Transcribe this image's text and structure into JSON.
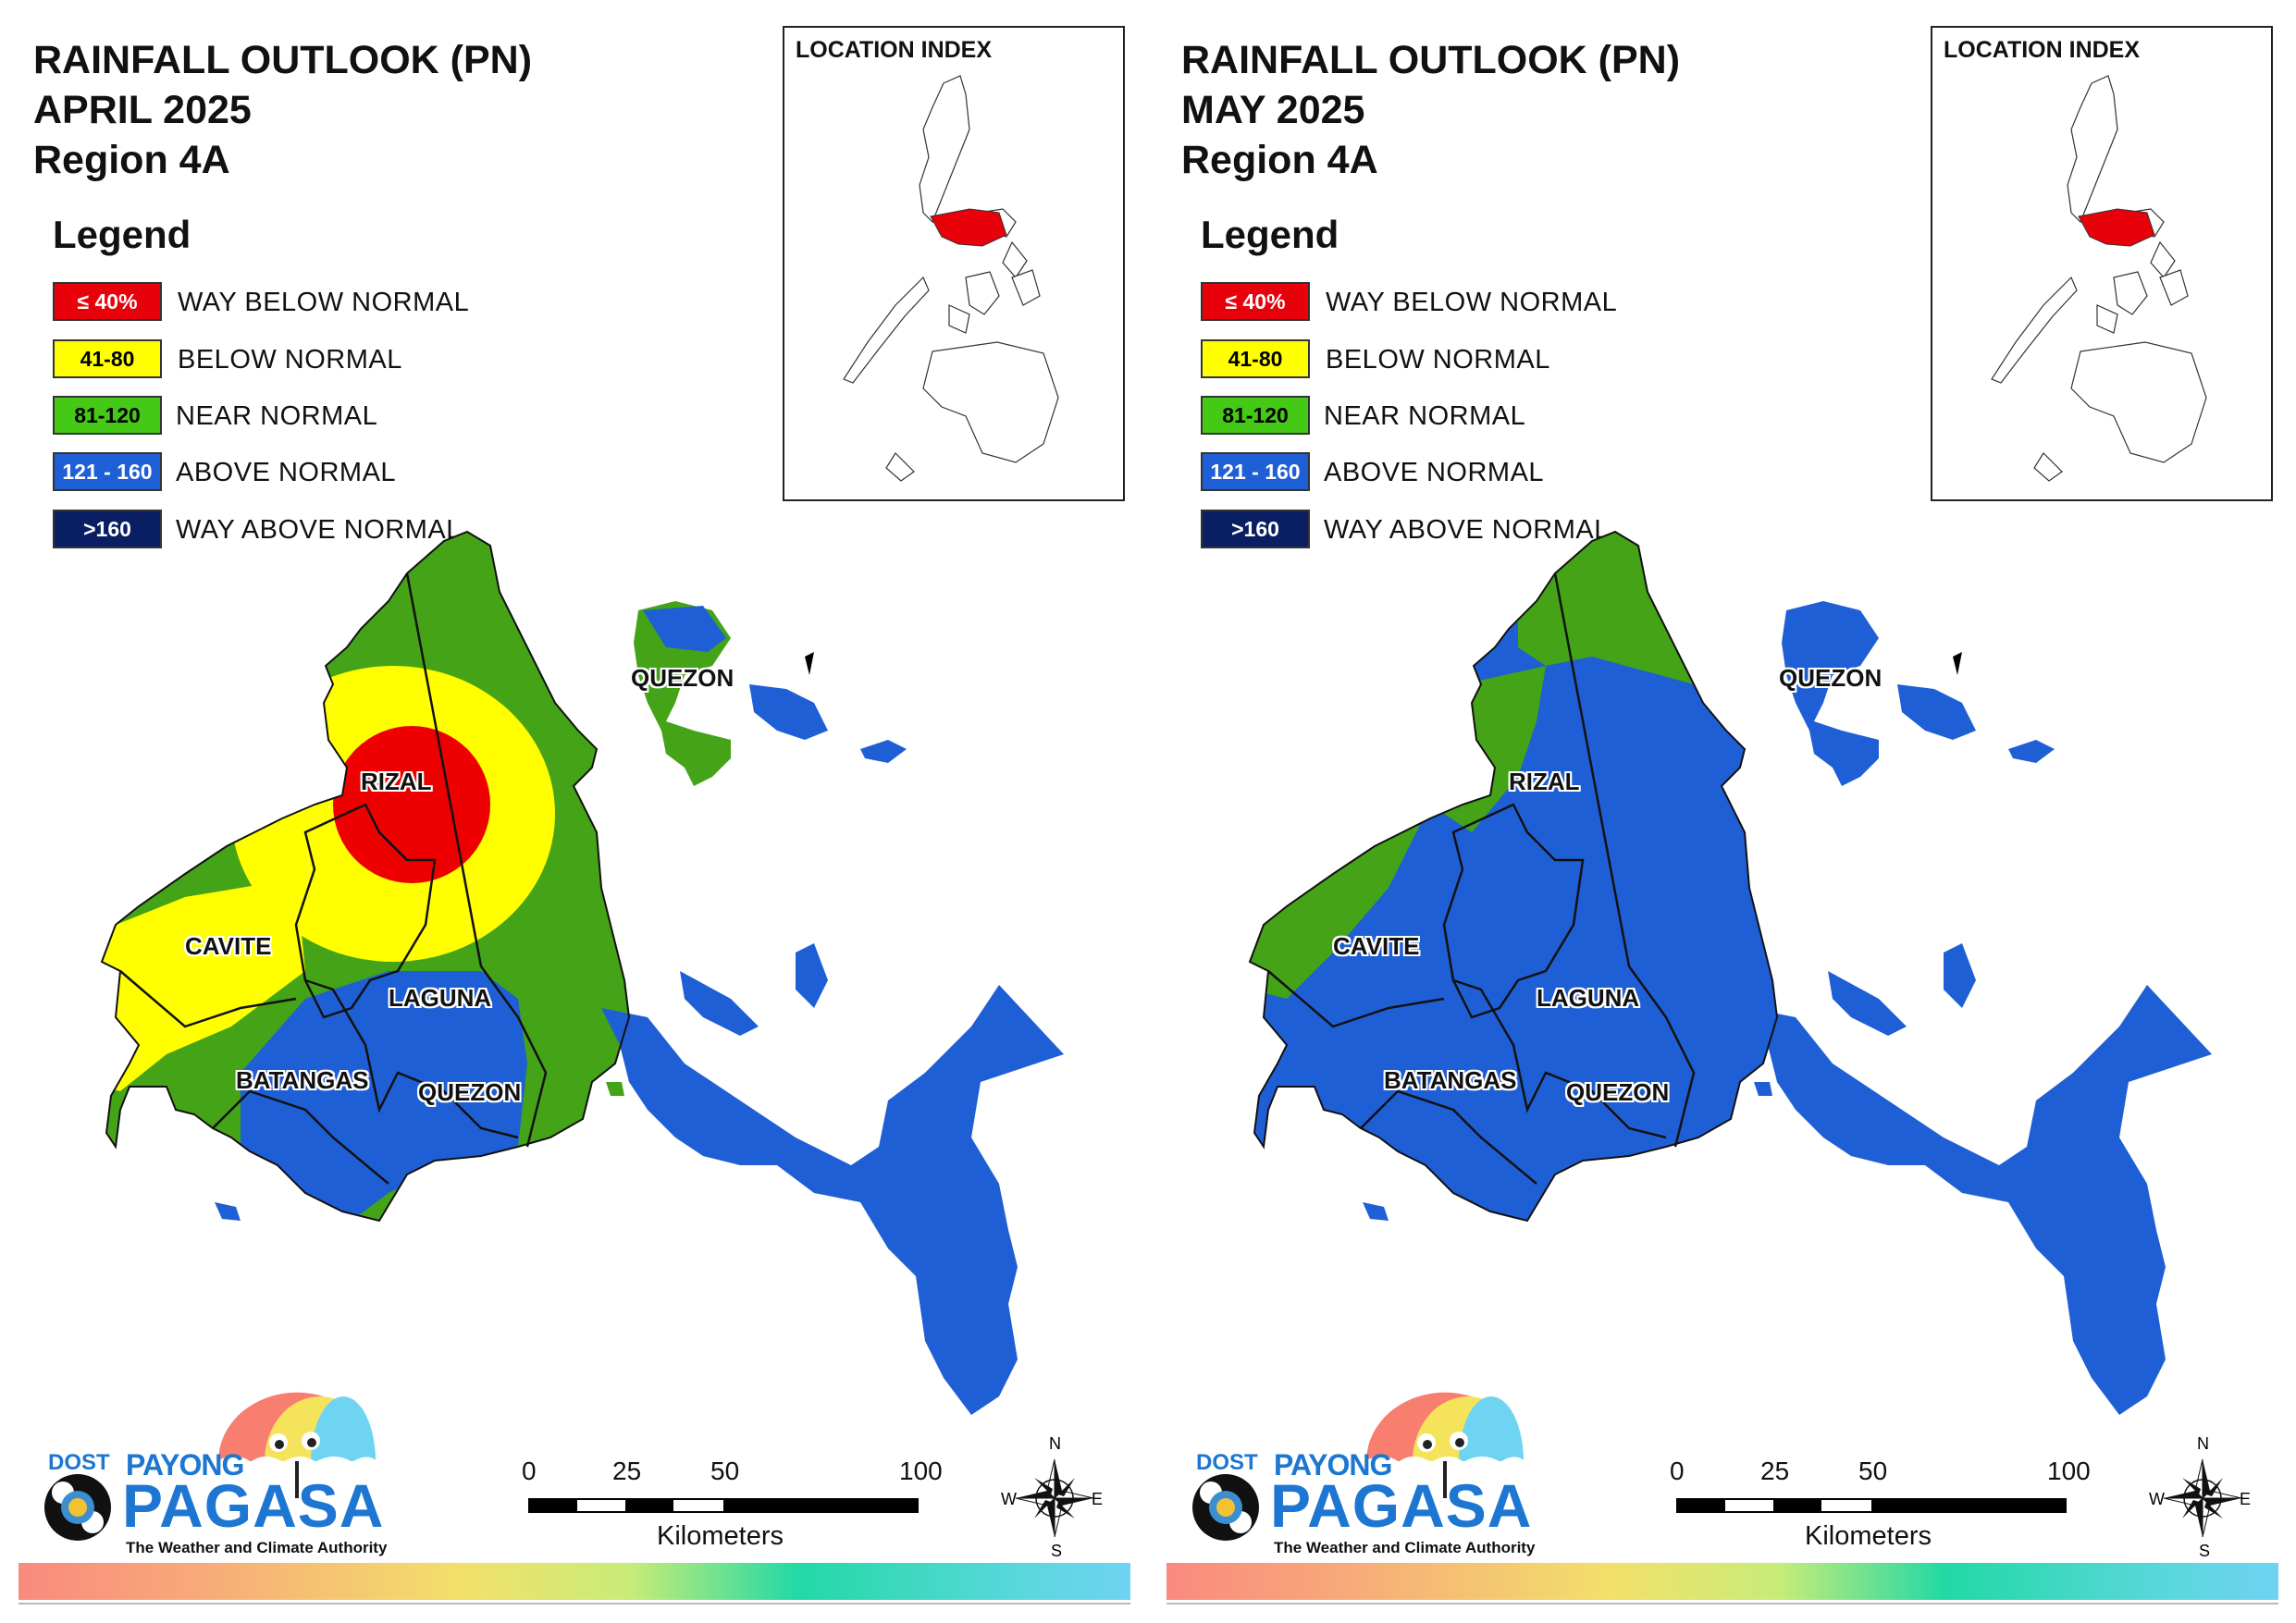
{
  "panels": [
    {
      "title_line1": "RAINFALL OUTLOOK (PN)",
      "title_line2": "APRIL 2025",
      "title_line3": "Region 4A"
    },
    {
      "title_line1": "RAINFALL OUTLOOK (PN)",
      "title_line2": "MAY 2025",
      "title_line3": "Region 4A"
    }
  ],
  "legend": {
    "title": "Legend",
    "items": [
      {
        "range": "≤ 40%",
        "label": "WAY BELOW NORMAL",
        "color": "#e8000b",
        "text_color": "#ffffff"
      },
      {
        "range": "41-80",
        "label": "BELOW NORMAL",
        "color": "#ffff00",
        "text_color": "#000000"
      },
      {
        "range": "81-120",
        "label": "NEAR NORMAL",
        "color": "#44c917",
        "text_color": "#000000"
      },
      {
        "range": "121 - 160",
        "label": "ABOVE NORMAL",
        "color": "#1f5fd6",
        "text_color": "#ffffff"
      },
      {
        "range": ">160",
        "label": "WAY ABOVE NORMAL",
        "color": "#0a1f63",
        "text_color": "#ffffff"
      }
    ]
  },
  "inset": {
    "title": "LOCATION INDEX",
    "highlight_color": "#e8000b"
  },
  "provinces": [
    "RIZAL",
    "CAVITE",
    "LAGUNA",
    "BATANGAS",
    "QUEZON",
    "QUEZON"
  ],
  "map_colors": {
    "green": "#44a317",
    "yellow": "#ffff00",
    "red": "#ee0000",
    "blue": "#1f5fd6"
  },
  "logo": {
    "dost": "DOST",
    "payong": "PAYONG",
    "pagasa": "PAGASA",
    "tagline": "The Weather and Climate Authority"
  },
  "scale": {
    "ticks": [
      "0",
      "25",
      "50",
      "100"
    ],
    "unit": "Kilometers"
  },
  "compass": {
    "n": "N",
    "s": "S",
    "e": "E",
    "w": "W"
  }
}
